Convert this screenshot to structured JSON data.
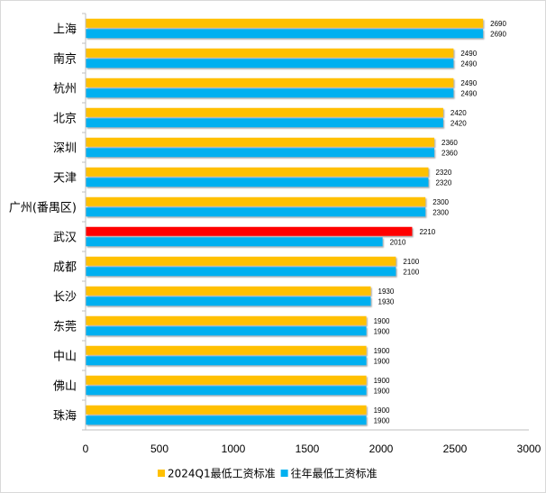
{
  "chart_data": {
    "type": "bar",
    "orientation": "horizontal",
    "categories": [
      "上海",
      "南京",
      "杭州",
      "北京",
      "深圳",
      "天津",
      "广州(番禺区)",
      "武汉",
      "成都",
      "长沙",
      "东莞",
      "中山",
      "佛山",
      "珠海"
    ],
    "series": [
      {
        "name": "2024Q1最低工资标准",
        "color": "#FFC000",
        "values": [
          2690,
          2490,
          2490,
          2420,
          2360,
          2320,
          2300,
          2210,
          2100,
          1930,
          1900,
          1900,
          1900,
          1900
        ]
      },
      {
        "name": "往年最低工资标准",
        "color": "#00B0F0",
        "values": [
          2690,
          2490,
          2490,
          2420,
          2360,
          2320,
          2300,
          2010,
          2100,
          1930,
          1900,
          1900,
          1900,
          1900
        ]
      }
    ],
    "highlight": {
      "category": "武汉",
      "series": "2024Q1最低工资标准",
      "color": "#FF0000"
    },
    "xlim": [
      0,
      3000
    ],
    "xticks": [
      0,
      500,
      1000,
      1500,
      2000,
      2500,
      3000
    ],
    "grid": false,
    "legend_position": "bottom"
  }
}
